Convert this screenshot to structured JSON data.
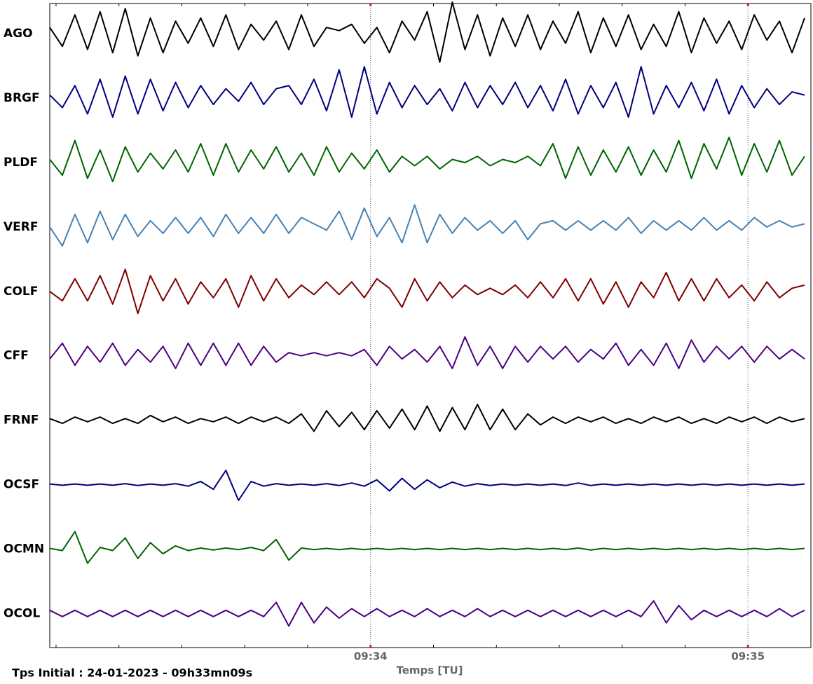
{
  "chart_data": {
    "type": "line",
    "x_label": "Temps [TU]",
    "annotation": "Tps Initial : 24-01-2023 - 09h33mn09s",
    "xlim": [
      0,
      121
    ],
    "xticks": [
      {
        "value": 51,
        "label": "09:34"
      },
      {
        "value": 111,
        "label": "09:35"
      }
    ],
    "xminorticks": [
      1,
      11,
      21,
      31,
      41,
      51,
      61,
      71,
      81,
      91,
      101,
      111,
      121
    ],
    "grid": true,
    "ylim": [
      -1,
      1
    ],
    "x": [
      0,
      2,
      4,
      6,
      8,
      10,
      12,
      14,
      16,
      18,
      20,
      22,
      24,
      26,
      28,
      30,
      32,
      34,
      36,
      38,
      40,
      42,
      44,
      46,
      48,
      50,
      52,
      54,
      56,
      58,
      60,
      62,
      64,
      66,
      68,
      70,
      72,
      74,
      76,
      78,
      80,
      82,
      84,
      86,
      88,
      90,
      92,
      94,
      96,
      98,
      100,
      102,
      104,
      106,
      108,
      110,
      112,
      114,
      116,
      118,
      120
    ],
    "series": [
      {
        "name": "AGO",
        "color": "#000000",
        "values": [
          0.2,
          -0.4,
          0.6,
          -0.5,
          0.7,
          -0.6,
          0.8,
          -0.7,
          0.5,
          -0.6,
          0.4,
          -0.3,
          0.5,
          -0.4,
          0.6,
          -0.5,
          0.3,
          -0.2,
          0.4,
          -0.5,
          0.6,
          -0.4,
          0.2,
          0.1,
          0.3,
          -0.3,
          0.2,
          -0.6,
          0.4,
          -0.2,
          0.7,
          -0.9,
          1.0,
          -0.5,
          0.6,
          -0.7,
          0.5,
          -0.4,
          0.6,
          -0.5,
          0.4,
          -0.3,
          0.7,
          -0.6,
          0.5,
          -0.4,
          0.6,
          -0.5,
          0.3,
          -0.4,
          0.7,
          -0.6,
          0.5,
          -0.3,
          0.4,
          -0.5,
          0.6,
          -0.2,
          0.4,
          -0.6,
          0.5
        ]
      },
      {
        "name": "BRGF",
        "color": "#00007f",
        "values": [
          0.1,
          -0.3,
          0.4,
          -0.5,
          0.6,
          -0.6,
          0.7,
          -0.5,
          0.6,
          -0.4,
          0.5,
          -0.3,
          0.4,
          -0.2,
          0.3,
          -0.1,
          0.5,
          -0.2,
          0.3,
          0.4,
          -0.2,
          0.6,
          -0.4,
          0.9,
          -0.6,
          1.0,
          -0.5,
          0.5,
          -0.3,
          0.4,
          -0.2,
          0.3,
          -0.4,
          0.5,
          -0.3,
          0.4,
          -0.2,
          0.5,
          -0.3,
          0.4,
          -0.4,
          0.6,
          -0.5,
          0.4,
          -0.3,
          0.5,
          -0.6,
          1.0,
          -0.5,
          0.4,
          -0.3,
          0.5,
          -0.4,
          0.6,
          -0.5,
          0.4,
          -0.3,
          0.3,
          -0.2,
          0.2,
          0.1
        ]
      },
      {
        "name": "PLDF",
        "color": "#006400",
        "values": [
          0.1,
          -0.4,
          0.7,
          -0.5,
          0.4,
          -0.6,
          0.5,
          -0.3,
          0.3,
          -0.2,
          0.4,
          -0.3,
          0.6,
          -0.4,
          0.6,
          -0.3,
          0.4,
          -0.2,
          0.5,
          -0.3,
          0.3,
          -0.4,
          0.5,
          -0.3,
          0.3,
          -0.2,
          0.4,
          -0.3,
          0.2,
          -0.1,
          0.2,
          -0.2,
          0.1,
          0.0,
          0.2,
          -0.1,
          0.1,
          0.0,
          0.2,
          -0.1,
          0.6,
          -0.5,
          0.5,
          -0.4,
          0.4,
          -0.3,
          0.5,
          -0.4,
          0.4,
          -0.3,
          0.7,
          -0.5,
          0.6,
          -0.2,
          0.8,
          -0.4,
          0.6,
          -0.3,
          0.7,
          -0.4,
          0.2
        ]
      },
      {
        "name": "VERF",
        "color": "#4682b4",
        "values": [
          0.0,
          -0.6,
          0.4,
          -0.5,
          0.5,
          -0.4,
          0.4,
          -0.3,
          0.2,
          -0.2,
          0.3,
          -0.2,
          0.3,
          -0.3,
          0.4,
          -0.2,
          0.3,
          -0.2,
          0.4,
          -0.2,
          0.3,
          0.1,
          -0.1,
          0.5,
          -0.4,
          0.6,
          -0.3,
          0.3,
          -0.5,
          0.7,
          -0.5,
          0.4,
          -0.2,
          0.3,
          -0.1,
          0.2,
          -0.2,
          0.2,
          -0.4,
          0.1,
          0.2,
          -0.1,
          0.2,
          -0.1,
          0.2,
          -0.1,
          0.3,
          -0.2,
          0.2,
          -0.1,
          0.2,
          -0.1,
          0.3,
          -0.1,
          0.2,
          -0.1,
          0.3,
          0.0,
          0.2,
          0.0,
          0.1
        ]
      },
      {
        "name": "COLF",
        "color": "#7f0000",
        "values": [
          0.0,
          -0.3,
          0.4,
          -0.3,
          0.5,
          -0.4,
          0.7,
          -0.7,
          0.5,
          -0.3,
          0.4,
          -0.4,
          0.3,
          -0.2,
          0.4,
          -0.5,
          0.5,
          -0.3,
          0.4,
          -0.2,
          0.2,
          -0.1,
          0.3,
          -0.1,
          0.3,
          -0.2,
          0.4,
          0.1,
          -0.5,
          0.4,
          -0.3,
          0.3,
          -0.2,
          0.2,
          -0.1,
          0.1,
          -0.1,
          0.2,
          -0.2,
          0.3,
          -0.2,
          0.4,
          -0.3,
          0.4,
          -0.4,
          0.3,
          -0.5,
          0.3,
          -0.2,
          0.6,
          -0.3,
          0.4,
          -0.3,
          0.4,
          -0.2,
          0.2,
          -0.3,
          0.3,
          -0.2,
          0.1,
          0.2
        ]
      },
      {
        "name": "CFF",
        "color": "#4b0082",
        "values": [
          -0.1,
          0.4,
          -0.3,
          0.3,
          -0.2,
          0.4,
          -0.3,
          0.2,
          -0.2,
          0.3,
          -0.4,
          0.4,
          -0.3,
          0.4,
          -0.3,
          0.4,
          -0.3,
          0.3,
          -0.2,
          0.1,
          0.0,
          0.1,
          0.0,
          0.1,
          0.0,
          0.2,
          -0.3,
          0.3,
          -0.1,
          0.2,
          -0.2,
          0.3,
          -0.4,
          0.6,
          -0.3,
          0.3,
          -0.4,
          0.3,
          -0.2,
          0.3,
          -0.1,
          0.3,
          -0.2,
          0.2,
          -0.1,
          0.4,
          -0.3,
          0.2,
          -0.3,
          0.4,
          -0.4,
          0.5,
          -0.2,
          0.3,
          -0.1,
          0.3,
          -0.2,
          0.3,
          -0.1,
          0.2,
          -0.1
        ]
      },
      {
        "name": "FRNF",
        "color": "#000000",
        "values": [
          0.05,
          -0.1,
          0.1,
          -0.05,
          0.1,
          -0.1,
          0.05,
          -0.1,
          0.15,
          -0.05,
          0.1,
          -0.1,
          0.05,
          -0.05,
          0.1,
          -0.1,
          0.1,
          -0.05,
          0.1,
          -0.1,
          0.2,
          -0.35,
          0.3,
          -0.2,
          0.25,
          -0.3,
          0.3,
          -0.25,
          0.35,
          -0.3,
          0.45,
          -0.35,
          0.4,
          -0.3,
          0.5,
          -0.3,
          0.35,
          -0.3,
          0.2,
          -0.15,
          0.1,
          -0.1,
          0.1,
          -0.05,
          0.1,
          -0.1,
          0.05,
          -0.1,
          0.1,
          -0.05,
          0.1,
          -0.1,
          0.05,
          -0.1,
          0.1,
          -0.05,
          0.1,
          -0.1,
          0.1,
          -0.05,
          0.05
        ]
      },
      {
        "name": "OCSF",
        "color": "#00007f",
        "values": [
          0.02,
          -0.02,
          0.02,
          -0.02,
          0.02,
          -0.02,
          0.03,
          -0.03,
          0.02,
          -0.02,
          0.03,
          -0.05,
          0.1,
          -0.15,
          0.45,
          -0.5,
          0.1,
          -0.05,
          0.03,
          -0.02,
          0.02,
          -0.02,
          0.03,
          -0.03,
          0.05,
          -0.05,
          0.15,
          -0.2,
          0.2,
          -0.15,
          0.15,
          -0.1,
          0.08,
          -0.05,
          0.03,
          -0.03,
          0.02,
          -0.02,
          0.02,
          -0.02,
          0.02,
          -0.03,
          0.05,
          -0.03,
          0.02,
          -0.02,
          0.02,
          -0.02,
          0.02,
          -0.02,
          0.02,
          -0.02,
          0.02,
          -0.02,
          0.02,
          -0.02,
          0.02,
          -0.02,
          0.02,
          -0.02,
          0.02
        ]
      },
      {
        "name": "OCMN",
        "color": "#006400",
        "values": [
          0.02,
          -0.05,
          0.55,
          -0.45,
          0.05,
          -0.05,
          0.35,
          -0.3,
          0.2,
          -0.15,
          0.1,
          -0.05,
          0.03,
          -0.03,
          0.03,
          -0.02,
          0.05,
          -0.05,
          0.3,
          -0.35,
          0.03,
          -0.02,
          0.02,
          -0.02,
          0.02,
          -0.02,
          0.02,
          -0.02,
          0.02,
          -0.02,
          0.02,
          -0.02,
          0.02,
          -0.02,
          0.02,
          -0.02,
          0.02,
          -0.02,
          0.02,
          -0.02,
          0.02,
          -0.02,
          0.03,
          -0.03,
          0.02,
          -0.02,
          0.02,
          -0.02,
          0.02,
          -0.02,
          0.02,
          -0.02,
          0.02,
          -0.02,
          0.02,
          -0.02,
          0.02,
          -0.02,
          0.02,
          -0.02,
          0.02
        ]
      },
      {
        "name": "OCOL",
        "color": "#4b0082",
        "values": [
          0.1,
          -0.1,
          0.1,
          -0.1,
          0.1,
          -0.1,
          0.1,
          -0.1,
          0.1,
          -0.1,
          0.1,
          -0.1,
          0.1,
          -0.1,
          0.1,
          -0.1,
          0.1,
          -0.1,
          0.35,
          -0.4,
          0.35,
          -0.3,
          0.2,
          -0.15,
          0.15,
          -0.1,
          0.15,
          -0.1,
          0.1,
          -0.1,
          0.15,
          -0.1,
          0.1,
          -0.1,
          0.15,
          -0.1,
          0.1,
          -0.1,
          0.1,
          -0.1,
          0.1,
          -0.1,
          0.1,
          -0.1,
          0.1,
          -0.1,
          0.1,
          -0.1,
          0.4,
          -0.3,
          0.25,
          -0.2,
          0.1,
          -0.1,
          0.1,
          -0.1,
          0.1,
          -0.1,
          0.15,
          -0.1,
          0.1
        ]
      }
    ]
  }
}
